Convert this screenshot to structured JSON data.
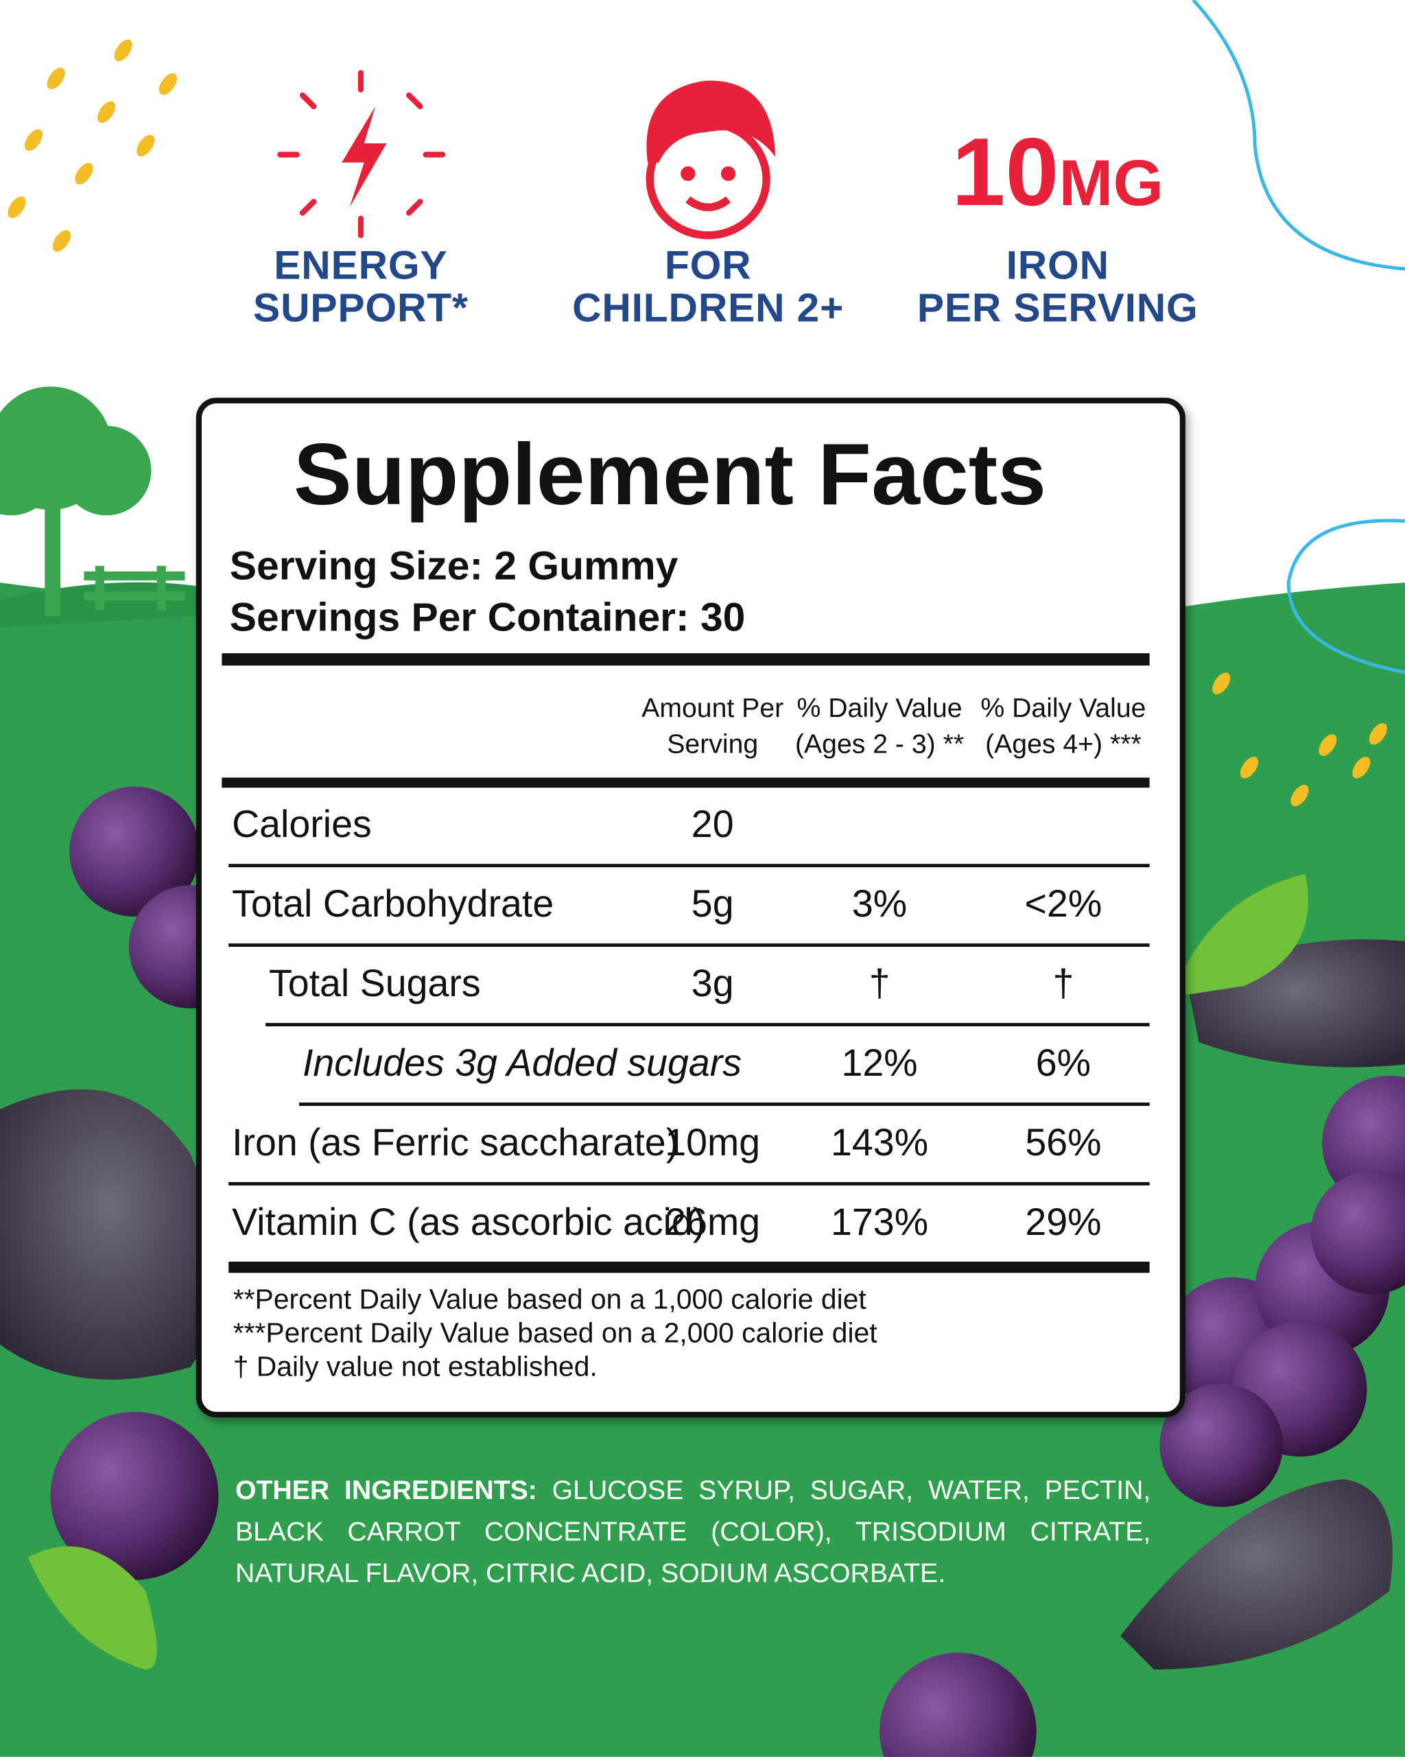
{
  "badges": [
    {
      "lines": [
        "ENERGY",
        "SUPPORT*"
      ]
    },
    {
      "lines": [
        "FOR",
        "CHILDREN 2+"
      ]
    },
    {
      "amount": "10",
      "unit": "MG",
      "lines": [
        "IRON",
        "PER SERVING"
      ]
    }
  ],
  "facts": {
    "title": "Supplement Facts",
    "serving_size": "Serving Size: 2 Gummy",
    "servings_per_container": "Servings Per Container: 30",
    "headers": [
      "Amount Per Serving",
      "% Daily Value (Ages 2 - 3) **",
      "% Daily Value (Ages 4+) ***"
    ],
    "rows": [
      {
        "name": "Calories",
        "amount": "20",
        "level": 0
      },
      {
        "name": "Total Carbohydrate",
        "amount": "5g",
        "dv_2_3": "3%",
        "dv_4": "<2%",
        "level": 0
      },
      {
        "name": "Total Sugars",
        "amount": "3g",
        "dv_2_3": "†",
        "dv_4": "†",
        "level": 1
      },
      {
        "name": "Includes 3g Added sugars",
        "dv_2_3": "12%",
        "dv_4": "6%",
        "level": 2
      },
      {
        "name": "Iron (as Ferric saccharate)",
        "amount": "10mg",
        "dv_2_3": "143%",
        "dv_4": "56%",
        "level": 0
      },
      {
        "name": "Vitamin C (as ascorbic acid)",
        "amount": "26mg",
        "dv_2_3": "173%",
        "dv_4": "29%",
        "level": 0
      }
    ],
    "footnotes": [
      "**Percent Daily Value based on a 1,000 calorie diet",
      "***Percent Daily Value based on a 2,000 calorie diet",
      "† Daily value not established."
    ]
  },
  "other_ingredients": {
    "label": "OTHER INGREDIENTS:",
    "text": "GLUCOSE SYRUP, SUGAR, WATER, PECTIN, BLACK CARROT CONCENTRATE (COLOR), TRISODIUM CITRATE, NATURAL FLAVOR, CITRIC ACID, SODIUM ASCORBATE."
  }
}
